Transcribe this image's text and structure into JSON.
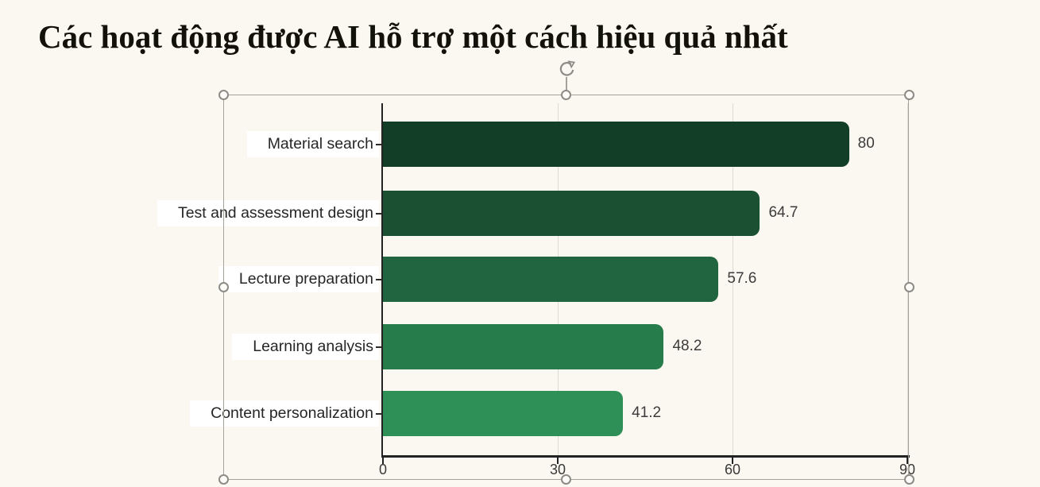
{
  "title": {
    "text": "Các hoạt động được AI hỗ trợ một cách hiệu quả nhất",
    "color": "#12120a"
  },
  "chart_data": {
    "type": "bar",
    "orientation": "horizontal",
    "title": "Các hoạt động được AI hỗ trợ một cách hiệu quả nhất",
    "categories": [
      "Material search",
      "Test and assessment design",
      "Lecture preparation",
      "Learning analysis",
      "Content personalization"
    ],
    "values": [
      80,
      64.7,
      57.6,
      48.2,
      41.2
    ],
    "value_labels": [
      "80",
      "64.7",
      "57.6",
      "48.2",
      "41.2"
    ],
    "bar_colors": [
      "#123d26",
      "#1b5033",
      "#216540",
      "#267c4a",
      "#2e9056"
    ],
    "x_ticks": [
      0,
      30,
      60,
      90
    ],
    "x_tick_labels": [
      "0",
      "30",
      "60",
      "90"
    ],
    "xlim": [
      0,
      90
    ],
    "grid": true,
    "legend": "none",
    "background": "#fbf8f1",
    "label_box_background": "#ffffff"
  },
  "selection": {
    "state": "chart object selected",
    "border_color": "#a5a29b",
    "handle_color": "#8d8b85",
    "rotate_icon": "rotate-handle-icon"
  }
}
